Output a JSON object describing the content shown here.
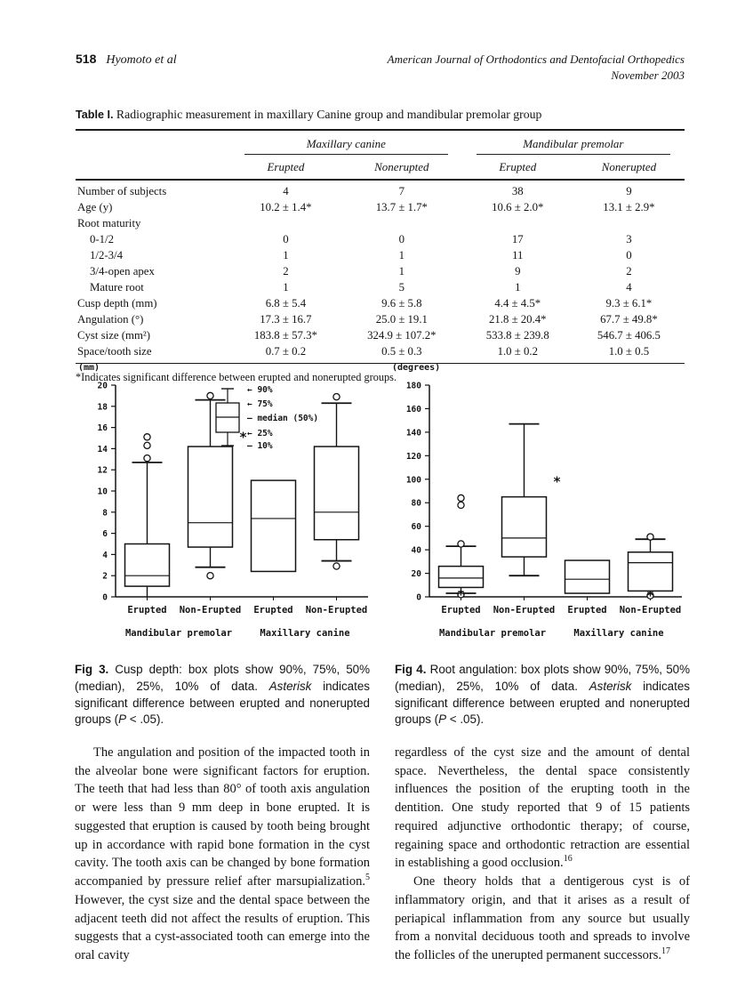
{
  "header": {
    "page_number": "518",
    "running_authors": "Hyomoto et al",
    "journal_line1": "American Journal of Orthodontics and Dentofacial Orthopedics",
    "journal_line2": "November 2003"
  },
  "table": {
    "label": "Table I.",
    "title": "Radiographic measurement in maxillary Canine group and mandibular premolar group",
    "group_headers": [
      "Maxillary canine",
      "Mandibular premolar"
    ],
    "sub_headers": [
      "Erupted",
      "Nonerupted",
      "Erupted",
      "Nonerupted"
    ],
    "rows": [
      {
        "label": "Number of subjects",
        "indent": false,
        "values": [
          "4",
          "7",
          "38",
          "9"
        ]
      },
      {
        "label": "Age (y)",
        "indent": false,
        "values": [
          "10.2 ± 1.4*",
          "13.7 ± 1.7*",
          "10.6 ± 2.0*",
          "13.1 ± 2.9*"
        ]
      },
      {
        "label": "Root maturity",
        "indent": false,
        "values": [
          "",
          "",
          "",
          ""
        ]
      },
      {
        "label": "0-1/2",
        "indent": true,
        "values": [
          "0",
          "0",
          "17",
          "3"
        ]
      },
      {
        "label": "1/2-3/4",
        "indent": true,
        "values": [
          "1",
          "1",
          "11",
          "0"
        ]
      },
      {
        "label": "3/4-open apex",
        "indent": true,
        "values": [
          "2",
          "1",
          "9",
          "2"
        ]
      },
      {
        "label": "Mature root",
        "indent": true,
        "values": [
          "1",
          "5",
          "1",
          "4"
        ]
      },
      {
        "label": "Cusp depth (mm)",
        "indent": false,
        "values": [
          "6.8 ± 5.4",
          "9.6 ± 5.8",
          "4.4 ± 4.5*",
          "9.3 ± 6.1*"
        ]
      },
      {
        "label": "Angulation (°)",
        "indent": false,
        "values": [
          "17.3 ± 16.7",
          "25.0 ± 19.1",
          "21.8 ± 20.4*",
          "67.7 ± 49.8*"
        ]
      },
      {
        "label": "Cyst size (mm²)",
        "indent": false,
        "values": [
          "183.8 ± 57.3*",
          "324.9 ± 107.2*",
          "533.8 ± 239.8",
          "546.7 ± 406.5"
        ]
      },
      {
        "label": "Space/tooth size",
        "indent": false,
        "values": [
          "0.7 ± 0.2",
          "0.5 ± 0.3",
          "1.0 ± 0.2",
          "1.0 ± 0.5"
        ]
      }
    ],
    "footnote": "*Indicates significant difference between erupted and nonerupted groups."
  },
  "chart_data": [
    {
      "type": "boxplot",
      "figure": "Fig 3",
      "measure": "Cusp depth",
      "unit_label": "(mm)",
      "ylim": [
        0,
        20
      ],
      "yticks": [
        0,
        2,
        4,
        6,
        8,
        10,
        12,
        14,
        16,
        18,
        20
      ],
      "categories": [
        "Erupted",
        "Non-Erupted",
        "Erupted",
        "Non-Erupted"
      ],
      "group_labels": [
        "Mandibular premolar",
        "Maxillary canine"
      ],
      "legend": [
        {
          "marker": "arrow",
          "label": "90%"
        },
        {
          "marker": "arrow",
          "label": "75%"
        },
        {
          "marker": "dash",
          "label": "median (50%)"
        },
        {
          "marker": "arrow",
          "label": "25%"
        },
        {
          "marker": "dash",
          "label": "10%"
        }
      ],
      "boxes": [
        {
          "p10": 0,
          "p25": 1,
          "median": 2,
          "p75": 5,
          "p90": 12.7,
          "markers": [
            {
              "type": "circle",
              "v": 13.1
            },
            {
              "type": "circle",
              "v": 14.3
            },
            {
              "type": "circle",
              "v": 15.1
            }
          ]
        },
        {
          "p10": 2.8,
          "p25": 4.7,
          "median": 7,
          "p75": 14.2,
          "p90": 18.6,
          "sig": 15,
          "markers": [
            {
              "type": "circle",
              "v": 19
            },
            {
              "type": "circle",
              "v": 2
            }
          ]
        },
        {
          "p10": 2.4,
          "p25": 2.4,
          "median": 7.4,
          "p75": 11,
          "p90": 11,
          "markers": []
        },
        {
          "p10": 3.4,
          "p25": 5.4,
          "median": 8,
          "p75": 14.2,
          "p90": 18.3,
          "markers": [
            {
              "type": "circle",
              "v": 18.9
            },
            {
              "type": "circle",
              "v": 2.9
            }
          ]
        }
      ]
    },
    {
      "type": "boxplot",
      "figure": "Fig 4",
      "measure": "Root angulation",
      "unit_label": "(degrees)",
      "ylim": [
        0,
        180
      ],
      "yticks": [
        0,
        20,
        40,
        60,
        80,
        100,
        120,
        140,
        160,
        180
      ],
      "categories": [
        "Erupted",
        "Non-Erupted",
        "Erupted",
        "Non-Erupted"
      ],
      "group_labels": [
        "Mandibular premolar",
        "Maxillary canine"
      ],
      "boxes": [
        {
          "p10": 3,
          "p25": 8,
          "median": 16,
          "p75": 26,
          "p90": 43,
          "markers": [
            {
              "type": "circle",
              "v": 45
            },
            {
              "type": "circle",
              "v": 84
            },
            {
              "type": "circle",
              "v": 78
            },
            {
              "type": "circle",
              "v": 2
            },
            {
              "type": "star",
              "v": 1
            }
          ]
        },
        {
          "p10": 18,
          "p25": 34,
          "median": 50,
          "p75": 85,
          "p90": 147,
          "sig": 97,
          "markers": []
        },
        {
          "p10": 3,
          "p25": 3,
          "median": 15,
          "p75": 31,
          "p90": 31,
          "markers": []
        },
        {
          "p10": 5,
          "p25": 5,
          "median": 29,
          "p75": 38,
          "p90": 49,
          "markers": [
            {
              "type": "circle",
              "v": 51
            },
            {
              "type": "circle",
              "v": 1
            },
            {
              "type": "star",
              "v": 0.5
            }
          ]
        }
      ]
    }
  ],
  "captions": {
    "fig3": {
      "label": "Fig 3.",
      "t1": " Cusp depth: box plots show 90%, 75%, 50% (median), 25%, 10% of data. ",
      "em": "Asterisk",
      "t2": " indicates significant difference between erupted and nonerupted groups (",
      "p": "P",
      "t3": " < .05)."
    },
    "fig4": {
      "label": "Fig 4.",
      "t1": " Root angulation: box plots show 90%, 75%, 50% (median), 25%, 10% of data. ",
      "em": "Asterisk",
      "t2": " indicates significant difference between erupted and nonerupted groups (",
      "p": "P",
      "t3": " < .05)."
    }
  },
  "body": {
    "left_para": {
      "t1": "The angulation and position of the impacted tooth in the alveolar bone were significant factors for eruption. The teeth that had less than 80° of tooth axis angulation or were less than 9 mm deep in bone erupted. It is suggested that eruption is caused by tooth being brought up in accordance with rapid bone formation in the cyst cavity. The tooth axis can be changed by bone formation accompanied by pressure relief after marsupialization.",
      "sup1": "5",
      "t2": " However, the cyst size and the dental space between the adjacent teeth did not affect the results of eruption. This suggests that a cyst-associated tooth can emerge into the oral cavity"
    },
    "right_para1": {
      "t1": "regardless of the cyst size and the amount of dental space. Nevertheless, the dental space consistently influences the position of the erupting tooth in the dentition. One study reported that 9 of 15 patients required adjunctive orthodontic therapy; of course, regaining space and orthodontic retraction are essential in establishing a good occlusion.",
      "sup1": "16"
    },
    "right_para2": {
      "t1": "One theory holds that a dentigerous cyst is of inflammatory origin, and that it arises as a result of periapical inflammation from any source but usually from a nonvital deciduous tooth and spreads to involve the follicles of the unerupted permanent successors.",
      "sup1": "17"
    }
  }
}
